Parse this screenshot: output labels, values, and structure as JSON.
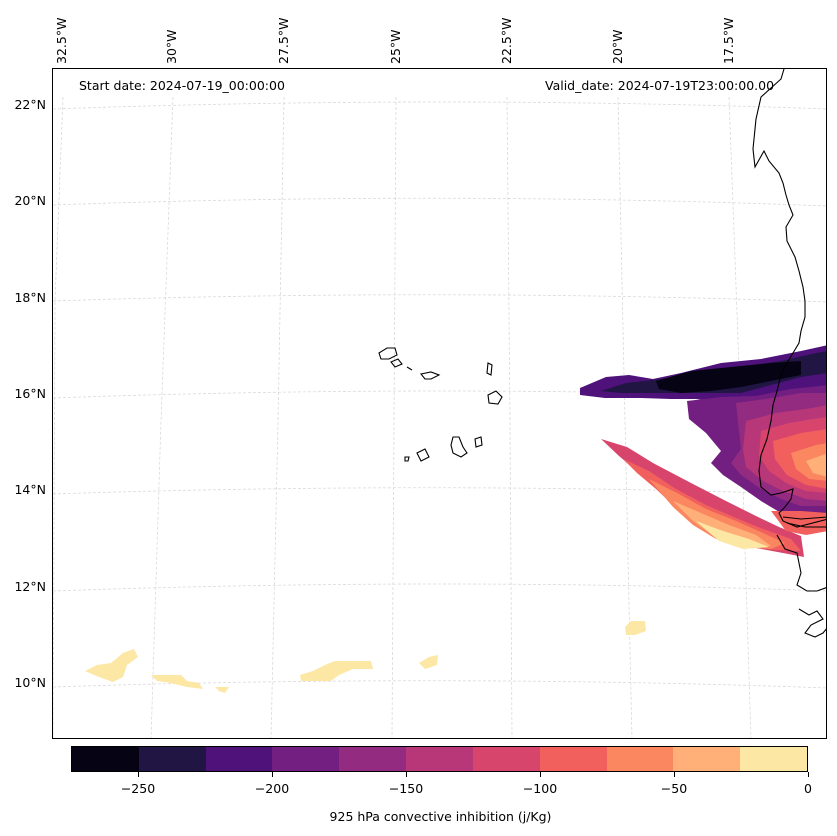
{
  "map": {
    "start_date": "Start date: 2024-07-19_00:00:00",
    "valid_date": "Valid_date: 2024-07-19T23:00:00.00",
    "lon_labels": [
      "32.5°W",
      "30°W",
      "27.5°W",
      "25°W",
      "22.5°W",
      "20°W",
      "17.5°W"
    ],
    "lat_labels": [
      "22°N",
      "20°N",
      "18°N",
      "16°N",
      "14°N",
      "12°N",
      "10°N"
    ],
    "gridline_color": "#d9d9d9",
    "coastline_color": "#000000"
  },
  "colorbar": {
    "label": "925 hPa convective inhibition (j/Kg)",
    "tick_labels": [
      "−250",
      "−200",
      "−150",
      "−100",
      "−50",
      "0"
    ],
    "tick_values": [
      -250,
      -200,
      -150,
      -100,
      -50,
      0
    ],
    "range": [
      -275,
      0
    ],
    "colors": [
      "#060414",
      "#201543",
      "#4f127b",
      "#721f81",
      "#932b80",
      "#b73779",
      "#d8456c",
      "#f1605d",
      "#fb8761",
      "#feb078",
      "#fde7a4"
    ]
  }
}
